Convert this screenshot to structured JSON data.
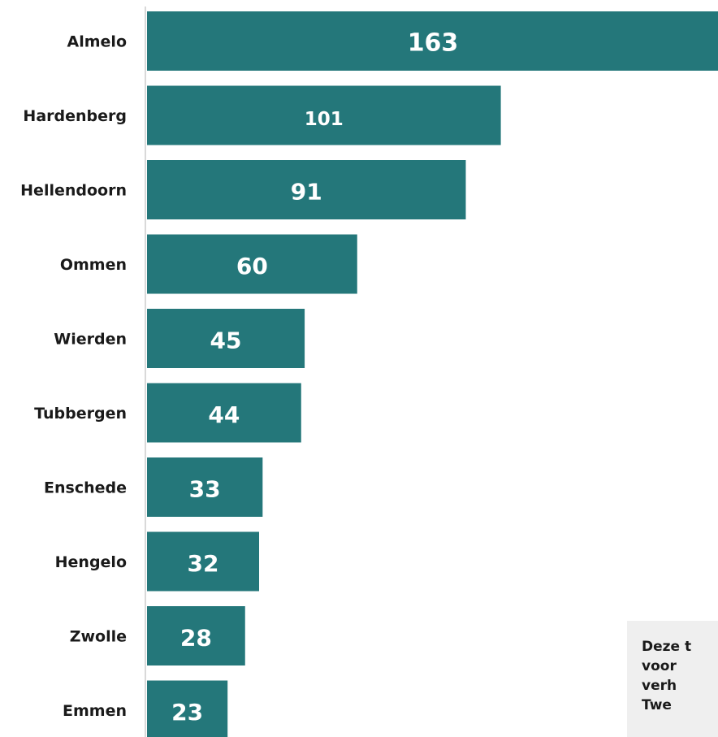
{
  "chart_data": {
    "type": "bar",
    "orientation": "horizontal",
    "categories": [
      "Almelo",
      "Hardenberg",
      "Hellendoorn",
      "Ommen",
      "Wierden",
      "Tubbergen",
      "Enschede",
      "Hengelo",
      "Zwolle",
      "Emmen"
    ],
    "values": [
      163,
      101,
      91,
      60,
      45,
      44,
      33,
      32,
      28,
      23
    ],
    "data_labels": [
      "163",
      "101",
      "91",
      "60",
      "45",
      "44",
      "33",
      "32",
      "28",
      "23"
    ],
    "bar_color": "#24777a",
    "label_color": "#ffffff",
    "grid": false,
    "xlim": [
      0,
      163
    ]
  },
  "note": {
    "lines": [
      "Deze t",
      "voor",
      "verh",
      "Twe"
    ]
  }
}
